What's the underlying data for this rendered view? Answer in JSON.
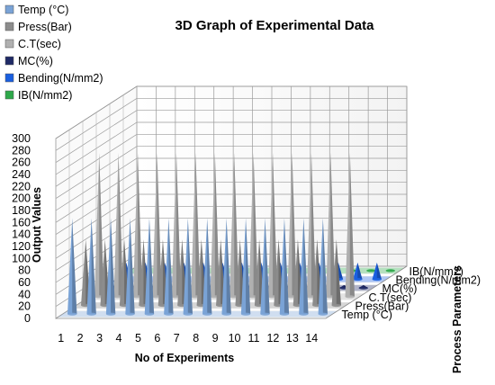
{
  "chart_data": {
    "type": "bar",
    "subtype": "3d-cone",
    "title": "3D Graph of Experimental Data",
    "xlabel": "No of Experiments",
    "ylabel": "Output Values",
    "zlabel": "Process Parameters",
    "categories": [
      "1",
      "2",
      "3",
      "4",
      "5",
      "6",
      "7",
      "8",
      "9",
      "10",
      "11",
      "12",
      "13",
      "14"
    ],
    "ylim": [
      0,
      300
    ],
    "yticks": [
      0,
      20,
      40,
      60,
      80,
      100,
      120,
      140,
      160,
      180,
      200,
      220,
      240,
      260,
      280,
      300
    ],
    "grid": true,
    "legend_position": "top-left",
    "series": [
      {
        "name": "Temp (°C)",
        "color": "#7aa3d6",
        "values": [
          160,
          160,
          160,
          160,
          160,
          160,
          160,
          160,
          160,
          160,
          160,
          160,
          160,
          160
        ]
      },
      {
        "name": "Press(Bar)",
        "color": "#8c8c8c",
        "values": [
          110,
          110,
          110,
          110,
          110,
          110,
          110,
          110,
          110,
          110,
          110,
          110,
          110,
          110
        ]
      },
      {
        "name": "C.T(sec)",
        "color": "#b0b0b0",
        "values": [
          240,
          240,
          240,
          240,
          240,
          240,
          240,
          240,
          240,
          240,
          240,
          240,
          240,
          240
        ]
      },
      {
        "name": "MC(%)",
        "color": "#1f2a66",
        "values": [
          5,
          5,
          5,
          5,
          5,
          5,
          5,
          5,
          5,
          5,
          5,
          5,
          5,
          5
        ]
      },
      {
        "name": "Bending(N/mm2)",
        "color": "#1a5fe0",
        "values": [
          28,
          28,
          28,
          28,
          28,
          28,
          28,
          28,
          28,
          28,
          28,
          28,
          28,
          28
        ]
      },
      {
        "name": "IB(N/mm2)",
        "color": "#2ea84a",
        "values": [
          1,
          1,
          1,
          1,
          1,
          1,
          1,
          1,
          1,
          1,
          1,
          1,
          1,
          1
        ]
      }
    ]
  }
}
